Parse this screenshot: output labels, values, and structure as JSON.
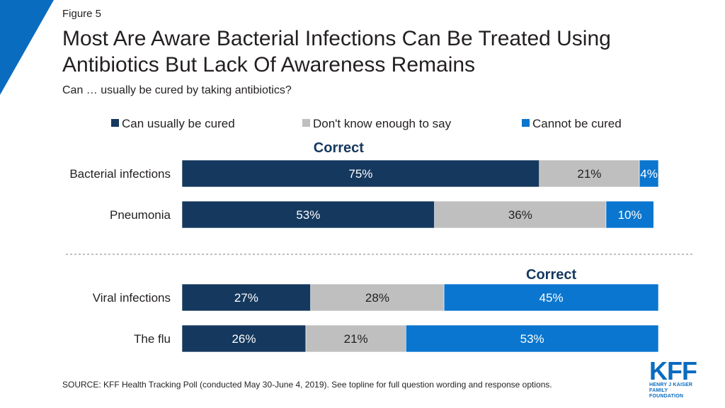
{
  "figure_label": "Figure 5",
  "title": "Most Are Aware Bacterial Infections Can Be Treated Using Antibiotics But Lack Of Awareness Remains",
  "subtitle": "Can … usually be cured by taking antibiotics?",
  "source": "SOURCE: KFF Health Tracking Poll (conducted May 30-June 4, 2019). See topline for full question wording and response options.",
  "logo": {
    "word": "KFF",
    "line1": "HENRY J KAISER",
    "line2": "FAMILY FOUNDATION"
  },
  "colors": {
    "navy": "#15385e",
    "gray": "#bfbfbf",
    "blue": "#0a76cf",
    "correct": "#15385e",
    "corner": "#0a6cbf"
  },
  "chart_data": {
    "type": "bar",
    "orientation": "horizontal",
    "stacked": true,
    "categories": [
      "Bacterial infections",
      "Pneumonia",
      "Viral infections",
      "The flu"
    ],
    "series": [
      {
        "name": "Can usually be cured",
        "color": "#15385e",
        "values": [
          75,
          53,
          27,
          26
        ]
      },
      {
        "name": "Don't know enough to say",
        "color": "#bfbfbf",
        "values": [
          21,
          36,
          28,
          21
        ]
      },
      {
        "name": "Cannot be cured",
        "color": "#0a76cf",
        "values": [
          4,
          10,
          45,
          53
        ]
      }
    ],
    "data_labels": [
      [
        "75%",
        "21%",
        "4%"
      ],
      [
        "53%",
        "36%",
        "10%"
      ],
      [
        "27%",
        "28%",
        "45%"
      ],
      [
        "26%",
        "21%",
        "53%"
      ]
    ],
    "annotations": [
      {
        "text": "Correct",
        "group": "top",
        "over_series": 0
      },
      {
        "text": "Correct",
        "group": "bottom",
        "over_series": 2
      }
    ],
    "legend_position": "top",
    "xlim": [
      0,
      100
    ],
    "grid": false
  }
}
